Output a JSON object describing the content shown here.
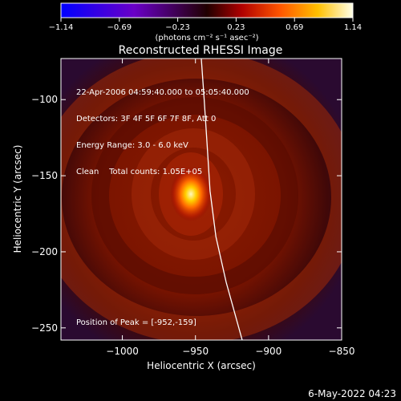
{
  "colorbar": {
    "ticks": [
      "-1.14",
      "-0.69",
      "-0.23",
      "0.23",
      "0.69",
      "1.14"
    ],
    "unit_label": "(photons cm⁻² s⁻¹ asec⁻²)"
  },
  "info": {
    "line1": "22-Apr-2006 04:59:40.000 to 05:05:40.000",
    "line2": "Detectors: 3F 4F 5F 6F 7F 8F, Att 0",
    "line3": "Energy Range: 3.0 - 6.0 keV",
    "line4": "Clean    Total counts: 1.05E+05"
  },
  "peak_text": "Position of Peak = [-952,-159]",
  "datestamp": "6-May-2022 04:23",
  "chart_data": {
    "type": "heatmap",
    "title": "Reconstructed RHESSI Image",
    "xlabel": "Heliocentric X (arcsec)",
    "ylabel": "Heliocentric Y (arcsec)",
    "xlim": [
      -1042,
      -850
    ],
    "ylim": [
      -258,
      -73
    ],
    "xticks": [
      -1000,
      -950,
      -900,
      -850
    ],
    "yticks": [
      -100,
      -150,
      -200,
      -250
    ],
    "xtick_labels": [
      "−1000",
      "−950",
      "−900",
      "−850"
    ],
    "ytick_labels": [
      "−100",
      "−150",
      "−200",
      "−250"
    ],
    "colormap": "hot",
    "color_range": [
      -1.14,
      1.14
    ],
    "peak": [
      -952,
      -159
    ],
    "limb_curve": [
      [
        -946,
        -73
      ],
      [
        -944,
        -100
      ],
      [
        -942,
        -130
      ],
      [
        -940,
        -160
      ],
      [
        -936,
        -190
      ],
      [
        -929,
        -220
      ],
      [
        -918,
        -258
      ]
    ]
  }
}
